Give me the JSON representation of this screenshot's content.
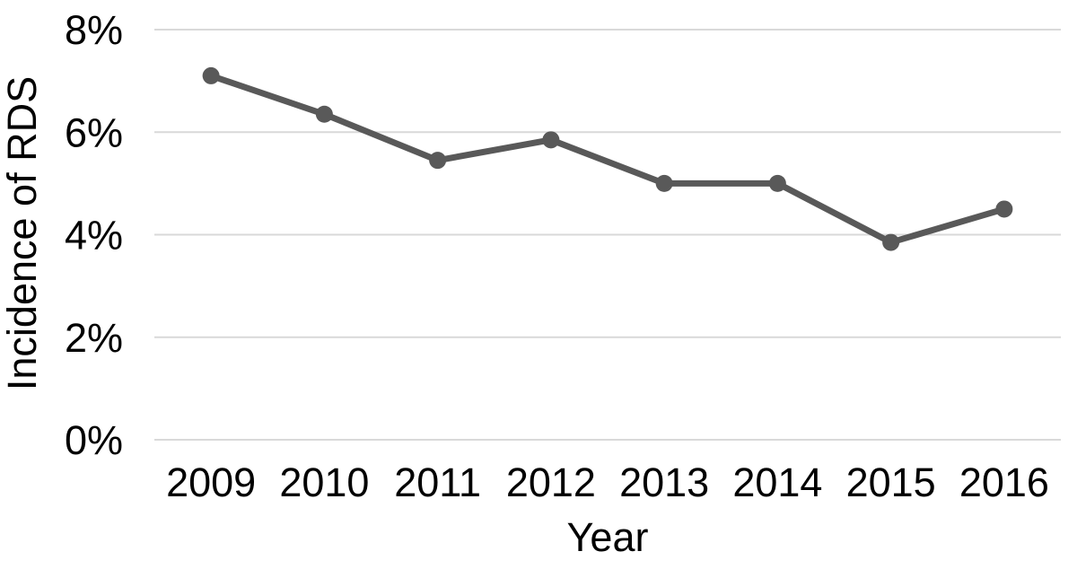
{
  "chart_data": {
    "type": "line",
    "categories": [
      "2009",
      "2010",
      "2011",
      "2012",
      "2013",
      "2014",
      "2015",
      "2016"
    ],
    "values": [
      7.1,
      6.35,
      5.45,
      5.85,
      5.0,
      5.0,
      3.85,
      4.5
    ],
    "series_name": "Incidence of RDS",
    "title": "",
    "xlabel": "Year",
    "ylabel": "Incidence of RDS",
    "ylim": [
      0,
      8
    ],
    "yticks": [
      0,
      2,
      4,
      6,
      8
    ],
    "ytick_labels": [
      "0%",
      "2%",
      "4%",
      "6%",
      "8%"
    ],
    "grid": "horizontal",
    "legend": "none",
    "marker": "circle",
    "colors": {
      "line": "#595959",
      "marker": "#595959",
      "gridline": "#d9d9d9",
      "text": "#000000",
      "background": "#ffffff"
    }
  }
}
